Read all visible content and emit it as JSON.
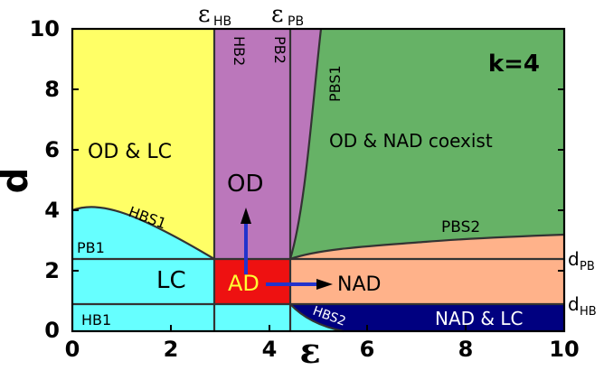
{
  "axes": {
    "x_label": "ε",
    "y_label": "d",
    "x_ticks": [
      "0",
      "2",
      "4",
      "6",
      "8",
      "10"
    ],
    "y_ticks": [
      "0",
      "2",
      "4",
      "6",
      "8",
      "10"
    ],
    "xlim": [
      0,
      10
    ],
    "ylim": [
      0,
      10
    ]
  },
  "top_labels": {
    "eps_hb": "HB",
    "eps_pb": "PB",
    "eps_symbol": "ε"
  },
  "right_labels": {
    "d_pb": "PB",
    "d_hb": "HB",
    "d_symbol": "d"
  },
  "parameter": "k=4",
  "regions": {
    "od_lc": "OD & LC",
    "od": "OD",
    "od_nad": "OD & NAD coexist",
    "lc": "LC",
    "ad": "AD",
    "nad": "NAD",
    "nad_lc": "NAD & LC"
  },
  "curves": {
    "hb1": "HB1",
    "hb2": "HB2",
    "pb1": "PB1",
    "pb2": "PB2",
    "hbs1": "HBS1",
    "hbs2": "HBS2",
    "pbs1": "PBS1",
    "pbs2": "PBS2"
  },
  "colors": {
    "yellow": "#ffff66",
    "cyan": "#66ffff",
    "purple": "#bb77bb",
    "green": "#66b266",
    "red": "#ee1111",
    "orange": "#ffb28a",
    "navy": "#000080",
    "arrow": "#2233cc"
  }
}
